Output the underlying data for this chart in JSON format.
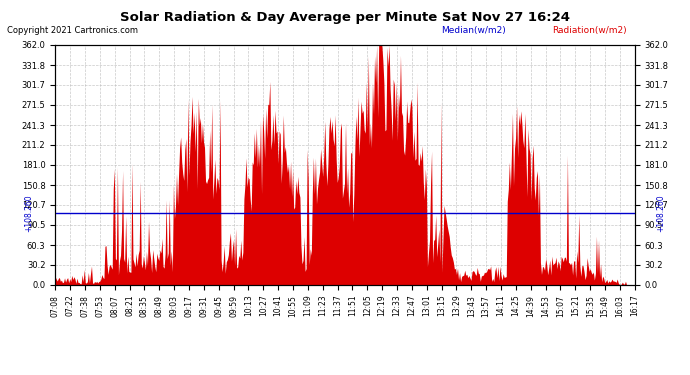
{
  "title": "Solar Radiation & Day Average per Minute Sat Nov 27 16:24",
  "copyright": "Copyright 2021 Cartronics.com",
  "median_label": "Median(w/m2)",
  "radiation_label": "Radiation(w/m2)",
  "median_value": 108.26,
  "median_label_text": "+108.260",
  "y_max": 362.0,
  "y_min": 0.0,
  "y_ticks": [
    0.0,
    30.2,
    60.3,
    90.5,
    120.7,
    150.8,
    181.0,
    211.2,
    241.3,
    271.5,
    301.7,
    331.8,
    362.0
  ],
  "background_color": "#ffffff",
  "fill_color": "#dd0000",
  "median_color": "#0000cc",
  "grid_color": "#bbbbbb",
  "title_color": "#000000",
  "x_labels": [
    "07:08",
    "07:22",
    "07:38",
    "07:53",
    "08:07",
    "08:21",
    "08:35",
    "08:49",
    "09:03",
    "09:17",
    "09:31",
    "09:45",
    "09:59",
    "10:13",
    "10:27",
    "10:41",
    "10:55",
    "11:09",
    "11:23",
    "11:37",
    "11:51",
    "12:05",
    "12:19",
    "12:33",
    "12:47",
    "13:01",
    "13:15",
    "13:29",
    "13:43",
    "13:57",
    "14:11",
    "14:25",
    "14:39",
    "14:53",
    "15:07",
    "15:21",
    "15:35",
    "15:49",
    "16:03",
    "16:17"
  ],
  "figwidth": 6.9,
  "figheight": 3.75,
  "dpi": 100
}
